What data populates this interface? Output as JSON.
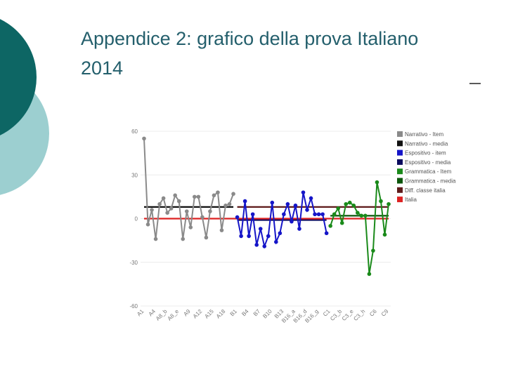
{
  "chart_data": {
    "type": "line",
    "title": "Appendice 2: grafico della prova Italiano 2014",
    "categories": [
      "A1",
      null,
      null,
      "A4",
      null,
      null,
      "A8_b",
      null,
      null,
      "A8_e",
      null,
      null,
      "A9",
      null,
      null,
      "A12",
      null,
      null,
      "A15",
      null,
      null,
      "A18",
      null,
      null,
      "B1",
      null,
      null,
      "B4",
      null,
      null,
      "B7",
      null,
      null,
      "B10",
      null,
      null,
      "B13",
      null,
      null,
      "B16_a",
      null,
      null,
      "B16_d",
      null,
      null,
      "B16_g",
      null,
      null,
      "C1",
      null,
      null,
      "C3_b",
      null,
      null,
      "C3_e",
      null,
      null,
      "C3_h",
      null,
      null,
      "C6",
      null,
      null,
      "C9"
    ],
    "series": [
      {
        "name": "Narrativo - Item",
        "color": "#8a8a8a",
        "markers": true,
        "values": [
          55,
          -4,
          6,
          -14,
          10,
          14,
          4,
          7,
          16,
          12,
          -14,
          5,
          -6,
          15,
          15,
          1,
          -13,
          5,
          16,
          18,
          -8,
          9,
          10,
          17,
          null,
          null,
          null,
          null,
          null,
          null,
          null,
          null,
          null,
          null,
          null,
          null,
          null,
          null,
          null,
          null,
          null,
          null,
          null,
          null,
          null,
          null,
          null,
          null,
          null,
          null,
          null,
          null,
          null,
          null,
          null,
          null,
          null,
          null,
          null,
          null,
          null,
          null,
          null,
          null
        ]
      },
      {
        "name": "Narrativo - media",
        "color": "#111111",
        "markers": false,
        "values": [
          8,
          8,
          8,
          8,
          8,
          8,
          8,
          8,
          8,
          8,
          8,
          8,
          8,
          8,
          8,
          8,
          8,
          8,
          8,
          8,
          8,
          8,
          8,
          8,
          null,
          null,
          null,
          null,
          null,
          null,
          null,
          null,
          null,
          null,
          null,
          null,
          null,
          null,
          null,
          null,
          null,
          null,
          null,
          null,
          null,
          null,
          null,
          null,
          null,
          null,
          null,
          null,
          null,
          null,
          null,
          null,
          null,
          null,
          null,
          null,
          null,
          null,
          null,
          null
        ]
      },
      {
        "name": "Espositivo - item",
        "color": "#1515c8",
        "markers": true,
        "values": [
          null,
          null,
          null,
          null,
          null,
          null,
          null,
          null,
          null,
          null,
          null,
          null,
          null,
          null,
          null,
          null,
          null,
          null,
          null,
          null,
          null,
          null,
          null,
          null,
          1,
          -12,
          12,
          -12,
          3,
          -18,
          -7,
          -19,
          -12,
          11,
          -16,
          -10,
          3,
          10,
          -2,
          9,
          -7,
          18,
          6,
          14,
          3,
          3,
          3,
          -10,
          null,
          null,
          null,
          null,
          null,
          null,
          null,
          null,
          null,
          null,
          null,
          null,
          null,
          null,
          null,
          null
        ]
      },
      {
        "name": "Espositivo - media",
        "color": "#0a0a5e",
        "markers": false,
        "values": [
          null,
          null,
          null,
          null,
          null,
          null,
          null,
          null,
          null,
          null,
          null,
          null,
          null,
          null,
          null,
          null,
          null,
          null,
          null,
          null,
          null,
          null,
          null,
          null,
          -1,
          -1,
          -1,
          -1,
          -1,
          -1,
          -1,
          -1,
          -1,
          -1,
          -1,
          -1,
          -1,
          -1,
          -1,
          -1,
          -1,
          -1,
          -1,
          -1,
          -1,
          -1,
          -1,
          -1,
          null,
          null,
          null,
          null,
          null,
          null,
          null,
          null,
          null,
          null,
          null,
          null,
          null,
          null,
          null,
          null
        ]
      },
      {
        "name": "Grammatica - Item",
        "color": "#1a8a1a",
        "markers": true,
        "values": [
          null,
          null,
          null,
          null,
          null,
          null,
          null,
          null,
          null,
          null,
          null,
          null,
          null,
          null,
          null,
          null,
          null,
          null,
          null,
          null,
          null,
          null,
          null,
          null,
          null,
          null,
          null,
          null,
          null,
          null,
          null,
          null,
          null,
          null,
          null,
          null,
          null,
          null,
          null,
          null,
          null,
          null,
          null,
          null,
          null,
          null,
          null,
          null,
          -5,
          3,
          7,
          -3,
          10,
          11,
          9,
          4,
          2,
          2,
          -38,
          -22,
          25,
          12,
          -11,
          10
        ]
      },
      {
        "name": "Grammatica - media",
        "color": "#0b560b",
        "markers": false,
        "values": [
          null,
          null,
          null,
          null,
          null,
          null,
          null,
          null,
          null,
          null,
          null,
          null,
          null,
          null,
          null,
          null,
          null,
          null,
          null,
          null,
          null,
          null,
          null,
          null,
          null,
          null,
          null,
          null,
          null,
          null,
          null,
          null,
          null,
          null,
          null,
          null,
          null,
          null,
          null,
          null,
          null,
          null,
          null,
          null,
          null,
          null,
          null,
          null,
          2,
          2,
          2,
          2,
          2,
          2,
          2,
          2,
          2,
          2,
          2,
          2,
          2,
          2,
          2,
          2
        ]
      },
      {
        "name": "Diff. classe italia",
        "color": "#5e1a1a",
        "markers": false,
        "values": [
          null,
          null,
          null,
          null,
          null,
          null,
          null,
          null,
          null,
          null,
          null,
          null,
          null,
          null,
          null,
          null,
          null,
          null,
          null,
          null,
          null,
          null,
          null,
          null,
          8,
          8,
          8,
          8,
          8,
          8,
          8,
          8,
          8,
          8,
          8,
          8,
          8,
          8,
          8,
          8,
          8,
          8,
          8,
          8,
          8,
          8,
          8,
          8,
          8,
          8,
          8,
          8,
          8,
          8,
          8,
          8,
          8,
          8,
          8,
          8,
          8,
          8,
          8,
          8
        ]
      },
      {
        "name": "Italia",
        "color": "#dd2222",
        "markers": false,
        "values": [
          0,
          0,
          0,
          0,
          0,
          0,
          0,
          0,
          0,
          0,
          0,
          0,
          0,
          0,
          0,
          0,
          0,
          0,
          0,
          0,
          0,
          0,
          0,
          0,
          0,
          0,
          0,
          0,
          0,
          0,
          0,
          0,
          0,
          0,
          0,
          0,
          0,
          0,
          0,
          0,
          0,
          0,
          0,
          0,
          0,
          0,
          0,
          0,
          0,
          0,
          0,
          0,
          0,
          0,
          0,
          0,
          0,
          0,
          0,
          0,
          0,
          0,
          0,
          0
        ]
      }
    ],
    "ylim": [
      -60,
      60
    ],
    "yticks": [
      -60,
      -30,
      0,
      30,
      60
    ],
    "grid": true,
    "legend": "right"
  }
}
